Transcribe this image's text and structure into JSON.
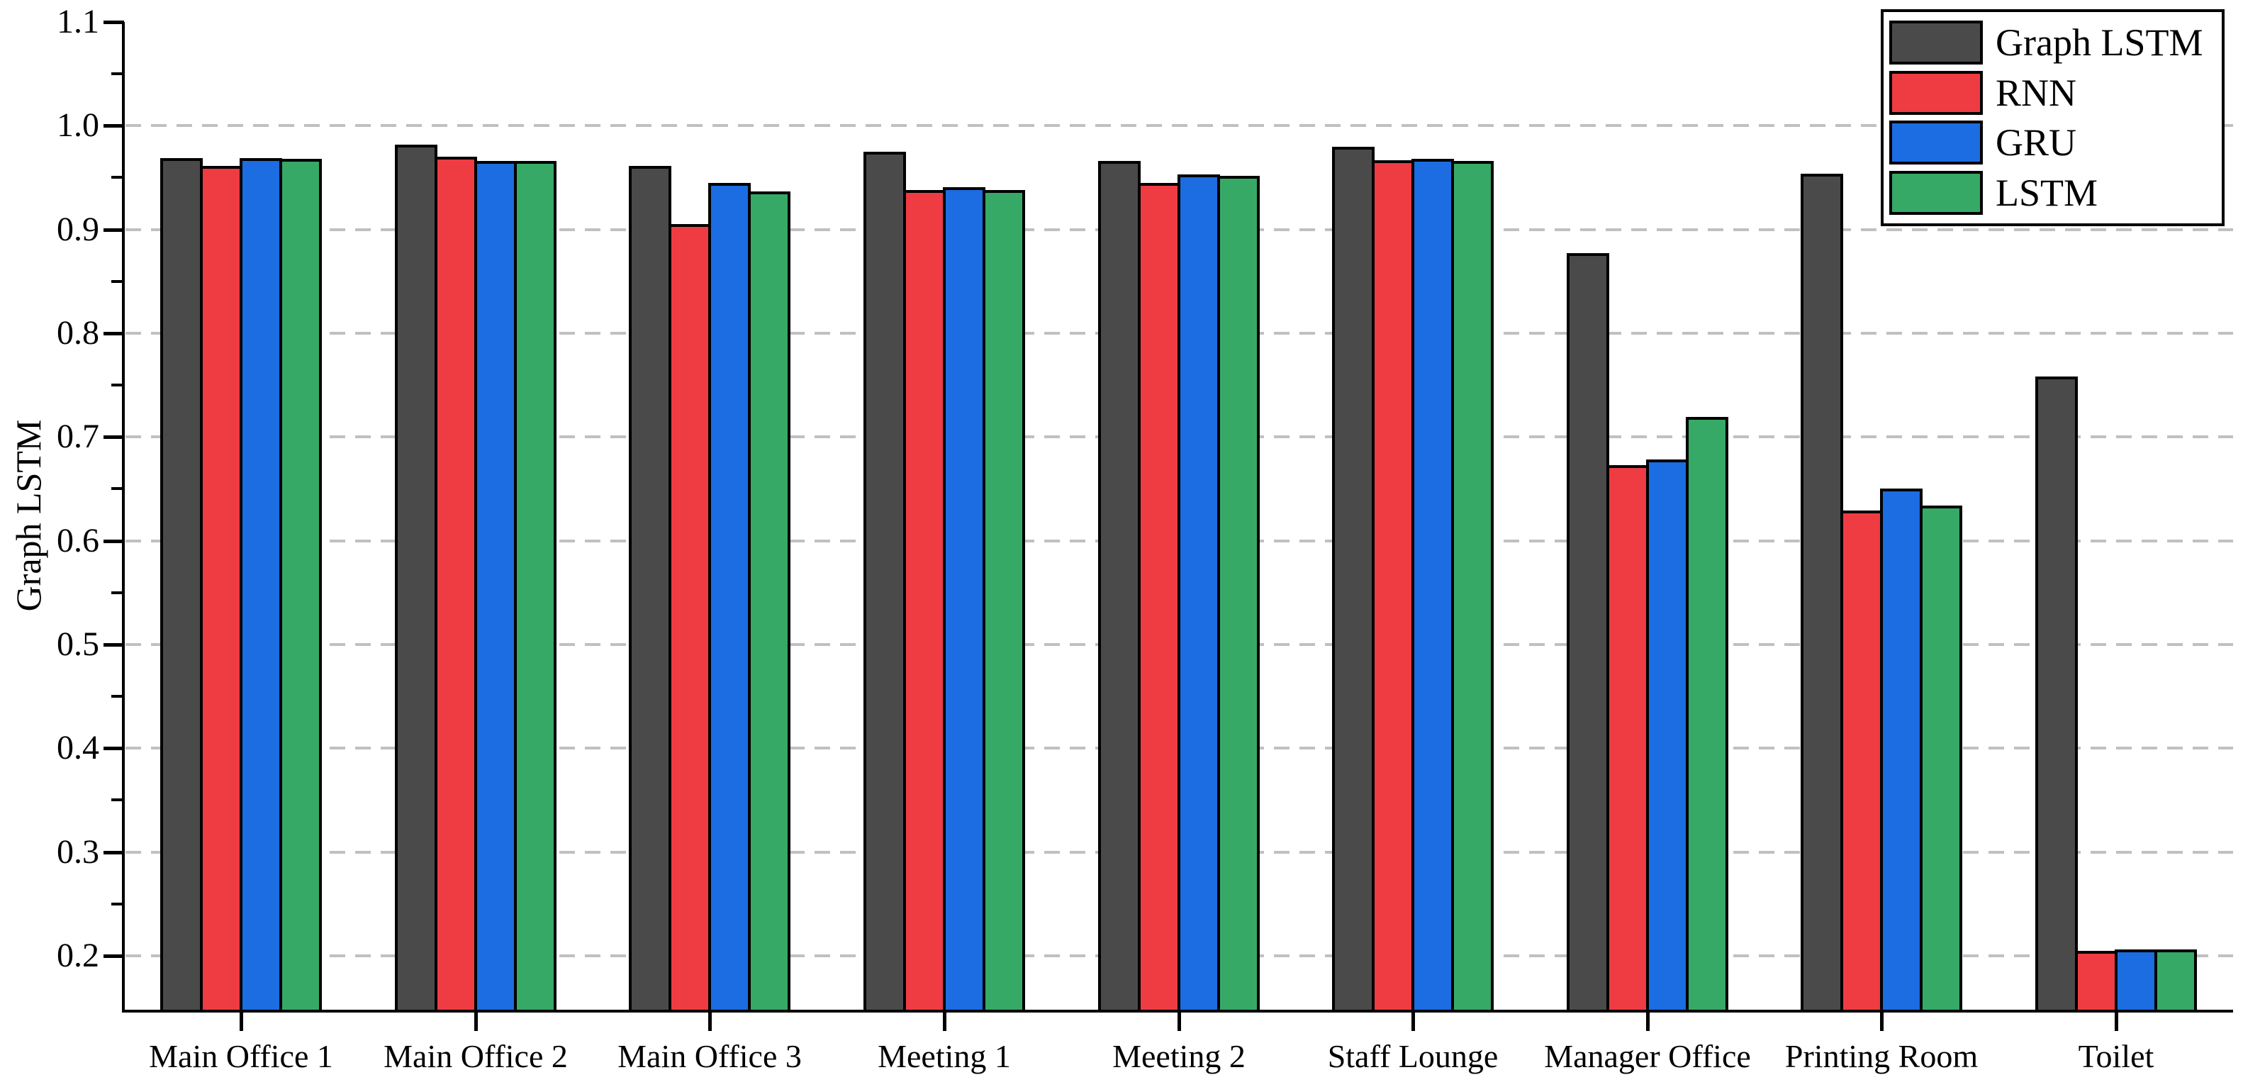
{
  "figure": {
    "ylabel": "Graph LSTM"
  },
  "chart_data": {
    "type": "bar",
    "title": "",
    "xlabel": "",
    "ylabel": "Graph LSTM",
    "categories": [
      "Main Office 1",
      "Main Office 2",
      "Main Office 3",
      "Meeting 1",
      "Meeting 2",
      "Staff Lounge",
      "Manager Office",
      "Printing Room",
      "Toilet"
    ],
    "series": [
      {
        "name": "Graph LSTM",
        "color": "#4a4a4a",
        "values": [
          0.969,
          0.982,
          0.961,
          0.975,
          0.966,
          0.98,
          0.877,
          0.954,
          0.758
        ]
      },
      {
        "name": "RNN",
        "color": "#ee3c42",
        "values": [
          0.961,
          0.97,
          0.905,
          0.938,
          0.945,
          0.967,
          0.673,
          0.629,
          0.205
        ]
      },
      {
        "name": "GRU",
        "color": "#1c6ce2",
        "values": [
          0.969,
          0.966,
          0.945,
          0.941,
          0.953,
          0.968,
          0.678,
          0.65,
          0.206
        ]
      },
      {
        "name": "LSTM",
        "color": "#36a967",
        "values": [
          0.968,
          0.966,
          0.937,
          0.938,
          0.952,
          0.966,
          0.719,
          0.634,
          0.206
        ]
      }
    ],
    "ylim": [
      0.148,
      1.1
    ],
    "yticks_major": [
      1.1,
      1.0,
      0.9,
      0.8,
      0.7,
      0.6,
      0.5,
      0.4,
      0.3,
      0.2
    ],
    "yticks_minor": [
      1.05,
      0.95,
      0.85,
      0.75,
      0.65,
      0.55,
      0.45,
      0.35,
      0.25
    ],
    "grid_values": [
      1.0,
      0.9,
      0.8,
      0.7,
      0.6,
      0.5,
      0.4,
      0.3,
      0.2
    ],
    "grid_on": true,
    "legend_position": "top-right",
    "axis_color": "#000000",
    "grid_color": "#c0c0c0",
    "background_color": "#ffffff"
  }
}
